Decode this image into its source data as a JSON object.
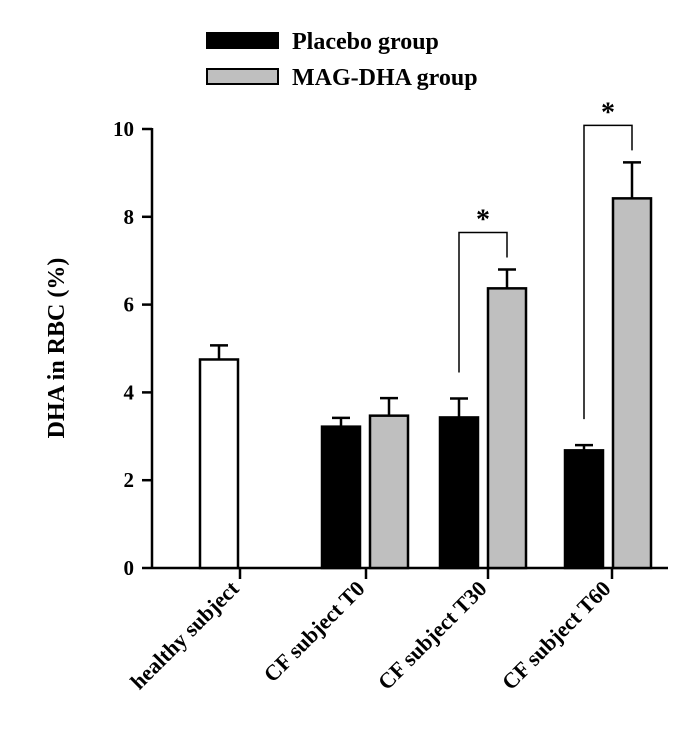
{
  "chart_data": {
    "type": "bar",
    "ylabel": "DHA in RBC (%)",
    "xlabel": "",
    "ylim": [
      0,
      10
    ],
    "y_ticks": [
      0,
      2,
      4,
      6,
      8,
      10
    ],
    "categories": [
      "healthy subject",
      "CF subject T0",
      "CF subject T30",
      "CF subject T60"
    ],
    "bars": [
      {
        "category": "healthy subject",
        "series": "healthy",
        "value": 4.75,
        "error": 0.32
      },
      {
        "category": "CF subject T0",
        "series": "Placebo group",
        "value": 3.22,
        "error": 0.2
      },
      {
        "category": "CF subject T0",
        "series": "MAG-DHA group",
        "value": 3.47,
        "error": 0.4
      },
      {
        "category": "CF subject T30",
        "series": "Placebo group",
        "value": 3.43,
        "error": 0.43
      },
      {
        "category": "CF subject T30",
        "series": "MAG-DHA group",
        "value": 6.37,
        "error": 0.43
      },
      {
        "category": "CF subject T60",
        "series": "Placebo group",
        "value": 2.68,
        "error": 0.12
      },
      {
        "category": "CF subject T60",
        "series": "MAG-DHA group",
        "value": 8.42,
        "error": 0.82
      }
    ],
    "series": [
      {
        "name": "Placebo group",
        "color": "#000000"
      },
      {
        "name": "MAG-DHA group",
        "color": "#bfbfbf"
      }
    ],
    "healthy_color": "#ffffff",
    "legend": {
      "placement": "top",
      "items": [
        {
          "label": "Placebo group",
          "color": "#000000"
        },
        {
          "label": "MAG-DHA group",
          "color": "#bfbfbf"
        }
      ]
    },
    "significance": [
      {
        "category": "CF subject T30",
        "label": "*"
      },
      {
        "category": "CF subject T60",
        "label": "*"
      }
    ]
  }
}
